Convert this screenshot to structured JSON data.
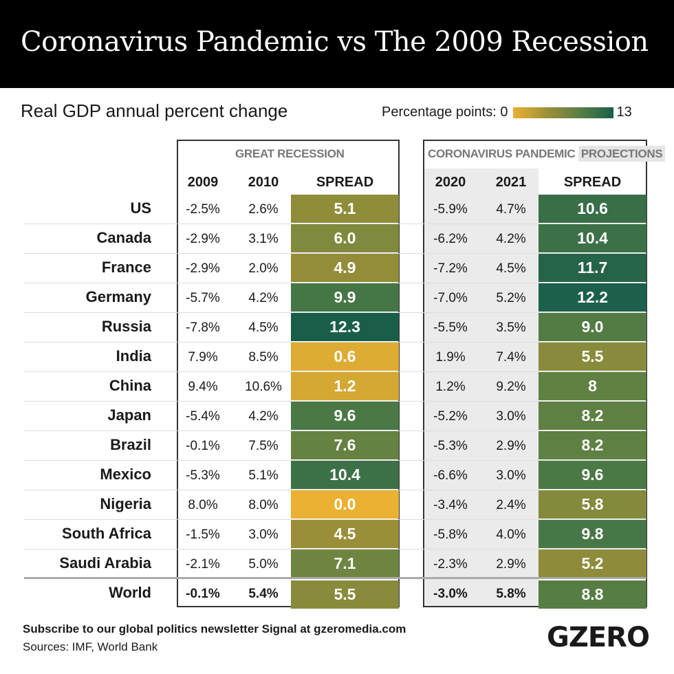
{
  "title": "Coronavirus Pandemic vs The 2009 Recession",
  "chart_data": {
    "type": "table",
    "subtitle": "Real GDP annual percent change",
    "legend": {
      "label": "Percentage points:",
      "min": "0",
      "max": "13",
      "color_min": "#eab132",
      "color_max": "#1a5e4a"
    },
    "groups": {
      "left": "GREAT RECESSION",
      "right": "CORONAVIRUS PANDEMIC",
      "right_tag": "PROJECTIONS"
    },
    "columns": [
      "2009",
      "2010",
      "SPREAD",
      "2020",
      "2021",
      "SPREAD"
    ],
    "rows": [
      {
        "country": "US",
        "y2009": "-2.5%",
        "y2010": "2.6%",
        "s1": "5.1",
        "y2020": "-5.9%",
        "y2021": "4.7%",
        "s2": "10.6"
      },
      {
        "country": "Canada",
        "y2009": "-2.9%",
        "y2010": "3.1%",
        "s1": "6.0",
        "y2020": "-6.2%",
        "y2021": "4.2%",
        "s2": "10.4"
      },
      {
        "country": "France",
        "y2009": "-2.9%",
        "y2010": "2.0%",
        "s1": "4.9",
        "y2020": "-7.2%",
        "y2021": "4.5%",
        "s2": "11.7"
      },
      {
        "country": "Germany",
        "y2009": "-5.7%",
        "y2010": "4.2%",
        "s1": "9.9",
        "y2020": "-7.0%",
        "y2021": "5.2%",
        "s2": "12.2"
      },
      {
        "country": "Russia",
        "y2009": "-7.8%",
        "y2010": "4.5%",
        "s1": "12.3",
        "y2020": "-5.5%",
        "y2021": "3.5%",
        "s2": "9.0"
      },
      {
        "country": "India",
        "y2009": "7.9%",
        "y2010": "8.5%",
        "s1": "0.6",
        "y2020": "1.9%",
        "y2021": "7.4%",
        "s2": "5.5"
      },
      {
        "country": "China",
        "y2009": "9.4%",
        "y2010": "10.6%",
        "s1": "1.2",
        "y2020": "1.2%",
        "y2021": "9.2%",
        "s2": "8"
      },
      {
        "country": "Japan",
        "y2009": "-5.4%",
        "y2010": "4.2%",
        "s1": "9.6",
        "y2020": "-5.2%",
        "y2021": "3.0%",
        "s2": "8.2"
      },
      {
        "country": "Brazil",
        "y2009": "-0.1%",
        "y2010": "7.5%",
        "s1": "7.6",
        "y2020": "-5.3%",
        "y2021": "2.9%",
        "s2": "8.2"
      },
      {
        "country": "Mexico",
        "y2009": "-5.3%",
        "y2010": "5.1%",
        "s1": "10.4",
        "y2020": "-6.6%",
        "y2021": "3.0%",
        "s2": "9.6"
      },
      {
        "country": "Nigeria",
        "y2009": "8.0%",
        "y2010": "8.0%",
        "s1": "0.0",
        "y2020": "-3.4%",
        "y2021": "2.4%",
        "s2": "5.8"
      },
      {
        "country": "South Africa",
        "y2009": "-1.5%",
        "y2010": "3.0%",
        "s1": "4.5",
        "y2020": "-5.8%",
        "y2021": "4.0%",
        "s2": "9.8"
      },
      {
        "country": "Saudi Arabia",
        "y2009": "-2.1%",
        "y2010": "5.0%",
        "s1": "7.1",
        "y2020": "-2.3%",
        "y2021": "2.9%",
        "s2": "5.2"
      },
      {
        "country": "World",
        "y2009": "-0.1%",
        "y2010": "5.4%",
        "s1": "5.5",
        "y2020": "-3.0%",
        "y2021": "5.8%",
        "s2": "8.8"
      }
    ]
  },
  "footer": {
    "subscribe": "Subscribe to our global politics newsletter Signal at gzeromedia.com",
    "sources": "Sources: IMF, World Bank",
    "logo": "GZERO"
  }
}
